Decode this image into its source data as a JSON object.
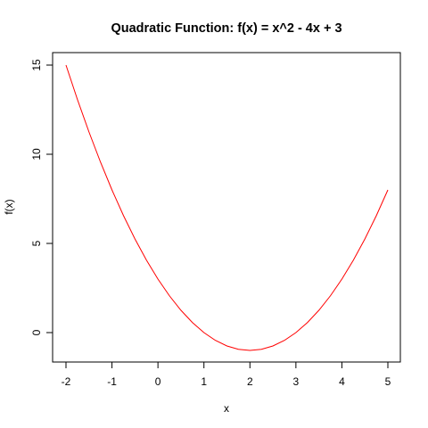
{
  "chart_data": {
    "type": "line",
    "title": "Quadratic Function: f(x) = x^2 - 4x + 3",
    "xlabel": "x",
    "ylabel": "f(x)",
    "xlim": [
      -2,
      5
    ],
    "ylim": [
      -1,
      15
    ],
    "x_ticks": [
      -2,
      -1,
      0,
      1,
      2,
      3,
      4,
      5
    ],
    "y_ticks": [
      0,
      5,
      10,
      15
    ],
    "grid": false,
    "series": [
      {
        "color": "#ff0000",
        "x": [
          -2,
          -1.75,
          -1.5,
          -1.25,
          -1,
          -0.75,
          -0.5,
          -0.25,
          0,
          0.25,
          0.5,
          0.75,
          1,
          1.25,
          1.5,
          1.75,
          2,
          2.25,
          2.5,
          2.75,
          3,
          3.25,
          3.5,
          3.75,
          4,
          4.25,
          4.5,
          4.75,
          5
        ],
        "y": [
          15,
          13.0625,
          11.25,
          9.5625,
          8,
          6.5625,
          5.25,
          4.0625,
          3,
          2.0625,
          1.25,
          0.5625,
          0,
          -0.4375,
          -0.75,
          -0.9375,
          -1,
          -0.9375,
          -0.75,
          -0.4375,
          0,
          0.5625,
          1.25,
          2.0625,
          3,
          4.0625,
          5.25,
          6.5625,
          8
        ]
      }
    ]
  }
}
